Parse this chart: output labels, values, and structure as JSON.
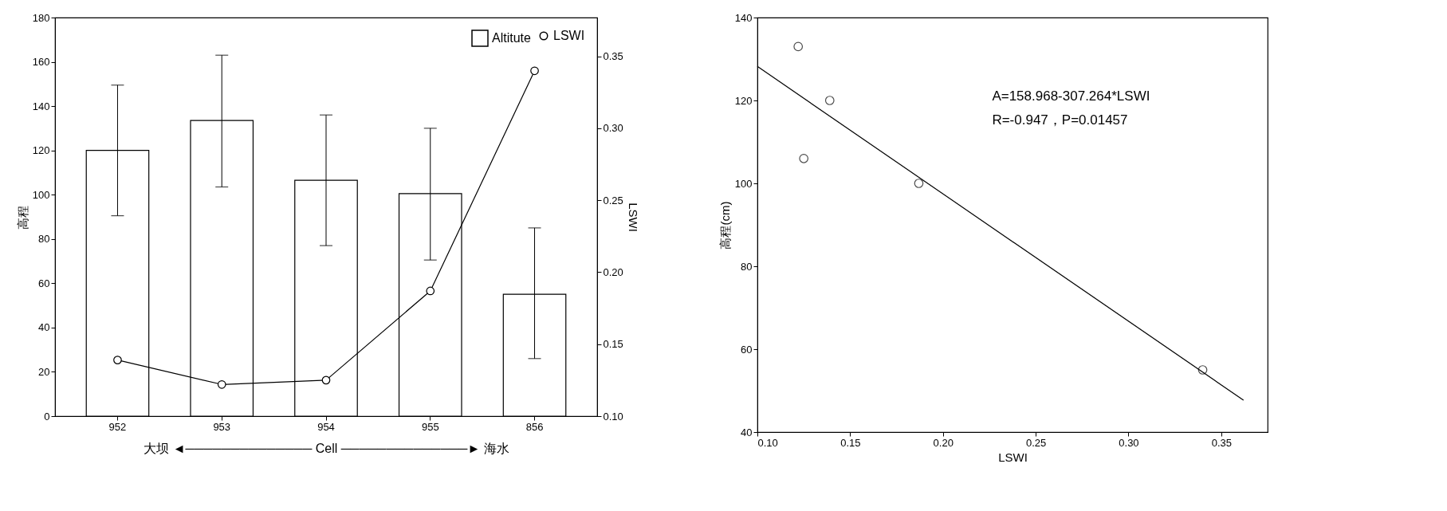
{
  "chart_data": [
    {
      "type": "bar",
      "categories": [
        "952",
        "953",
        "954",
        "955",
        "856"
      ],
      "xlabel": "大坝 ◄────────────── Cell ──────────────► 海水",
      "ylabel": "高程",
      "y2label": "LSWI",
      "series": [
        {
          "name": "Altitute",
          "type": "bar",
          "color": "#ffffff",
          "values": [
            120,
            133.5,
            106.5,
            100.5,
            55
          ],
          "errors": [
            [
              90.5,
              149.5
            ],
            [
              103.5,
              163
            ],
            [
              77,
              136
            ],
            [
              70.5,
              130
            ],
            [
              26,
              85
            ]
          ]
        },
        {
          "name": "LSWI",
          "type": "line",
          "axis": "y2",
          "color": "#000000",
          "marker": "circle",
          "values": [
            0.139,
            0.122,
            0.125,
            0.187,
            0.34
          ]
        }
      ],
      "ylim": [
        0,
        180
      ],
      "yticks": [
        0,
        20,
        40,
        60,
        80,
        100,
        120,
        140,
        160,
        180
      ],
      "y2lim": [
        0.1,
        0.377
      ],
      "y2ticks": [
        {
          "value": 0.1,
          "label": "0.10"
        },
        {
          "value": 0.15,
          "label": "0.15"
        },
        {
          "value": 0.2,
          "label": "0.20"
        },
        {
          "value": 0.25,
          "label": "0.25"
        },
        {
          "value": 0.3,
          "label": "0.30"
        },
        {
          "value": 0.35,
          "label": "0.35"
        }
      ],
      "legend": "top right",
      "grid": false
    },
    {
      "type": "scatter",
      "xlabel": "LSWI",
      "ylabel": "高程(cm)",
      "series": [
        {
          "type": "scatter",
          "color": "#000000",
          "marker": "circle",
          "x": [
            0.122,
            0.139,
            0.125,
            0.187,
            0.34
          ],
          "values": [
            133,
            120,
            106,
            100,
            55
          ]
        },
        {
          "type": "line",
          "color": "#000000",
          "x": [
            0.1,
            0.362
          ],
          "values": [
            128.2,
            47.7
          ]
        }
      ],
      "xlim": [
        0.1,
        0.375
      ],
      "xticks": [
        {
          "value": 0.1,
          "label": "0.10"
        },
        {
          "value": 0.15,
          "label": "0.15"
        },
        {
          "value": 0.2,
          "label": "0.20"
        },
        {
          "value": 0.25,
          "label": "0.25"
        },
        {
          "value": 0.3,
          "label": "0.30"
        },
        {
          "value": 0.35,
          "label": "0.35"
        }
      ],
      "ylim": [
        40,
        140
      ],
      "yticks": [
        40,
        60,
        80,
        100,
        120,
        140
      ],
      "annotations": [
        "A=158.968-307.264*LSWI",
        "R=-0.947，P=0.01457"
      ],
      "grid": false
    }
  ]
}
